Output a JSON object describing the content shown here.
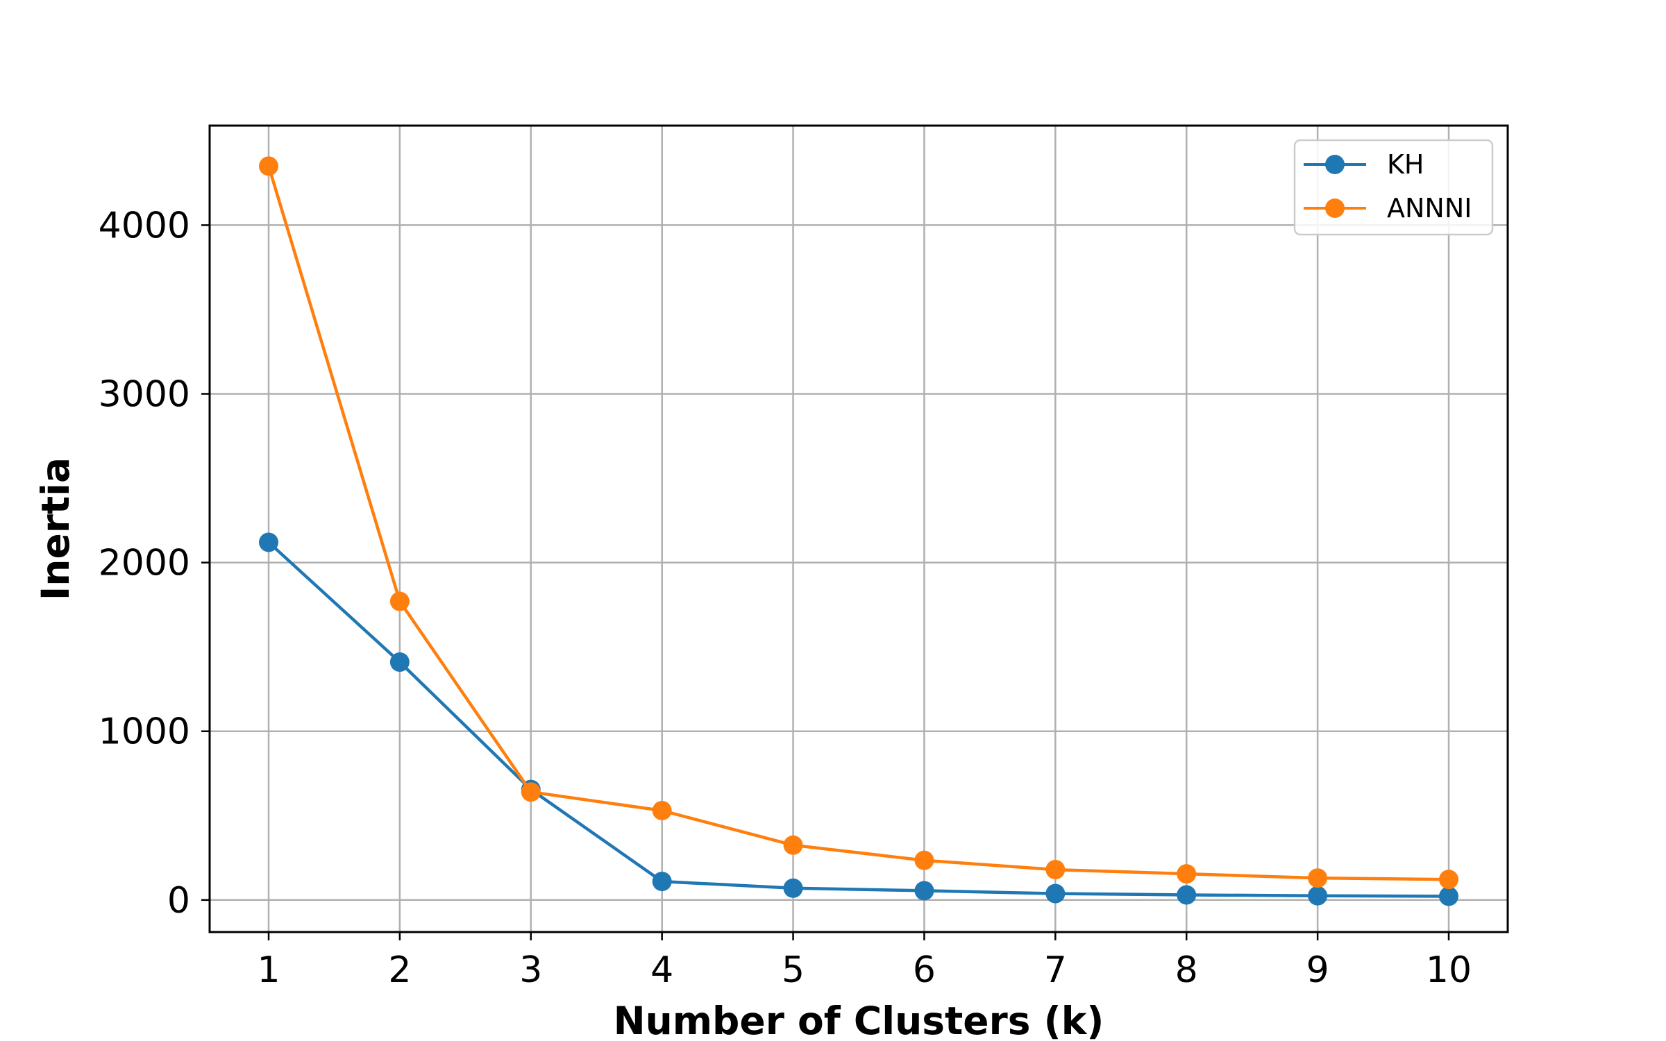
{
  "chart_data": {
    "type": "line",
    "title": "",
    "xlabel": "Number of Clusters (k)",
    "ylabel": "Inertia",
    "x": [
      1,
      2,
      3,
      4,
      5,
      6,
      7,
      8,
      9,
      10
    ],
    "xlim": [
      0.55,
      10.45
    ],
    "ylim": [
      -190,
      4590
    ],
    "xticks": [
      1,
      2,
      3,
      4,
      5,
      6,
      7,
      8,
      9,
      10
    ],
    "yticks": [
      0,
      1000,
      2000,
      3000,
      4000
    ],
    "grid": true,
    "legend_position": "top-right",
    "marker": "circle",
    "series": [
      {
        "name": "KH",
        "color": "#1f77b4",
        "values": [
          2120,
          1410,
          655,
          110,
          70,
          55,
          38,
          30,
          25,
          22
        ]
      },
      {
        "name": "ANNNI",
        "color": "#ff7f0e",
        "values": [
          4350,
          1770,
          640,
          530,
          325,
          235,
          180,
          155,
          130,
          122
        ]
      }
    ]
  }
}
